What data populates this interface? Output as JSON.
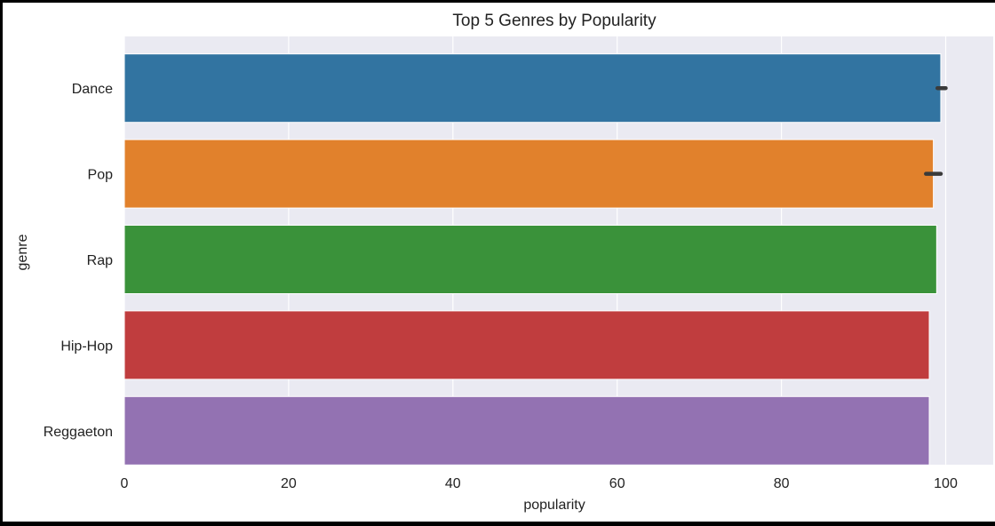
{
  "chart_data": {
    "type": "bar",
    "orientation": "horizontal",
    "title": "Top 5 Genres by Popularity",
    "xlabel": "popularity",
    "ylabel": "genre",
    "categories": [
      "Dance",
      "Pop",
      "Rap",
      "Hip-Hop",
      "Reggaeton"
    ],
    "values": [
      99.4,
      98.5,
      98.9,
      98.0,
      98.0
    ],
    "error_bars": [
      {
        "category": "Dance",
        "low": 99.0,
        "high": 100.0
      },
      {
        "category": "Pop",
        "low": 97.6,
        "high": 99.4
      }
    ],
    "colors": [
      "#3274a1",
      "#e1812c",
      "#3a923a",
      "#c03d3e",
      "#9372b2"
    ],
    "error_bar_color": "#3a3a3a",
    "xlim": [
      0,
      105
    ],
    "xticks": [
      0,
      20,
      40,
      60,
      80,
      100
    ],
    "grid": true,
    "background": "#eaeaf2",
    "legend": "none"
  }
}
